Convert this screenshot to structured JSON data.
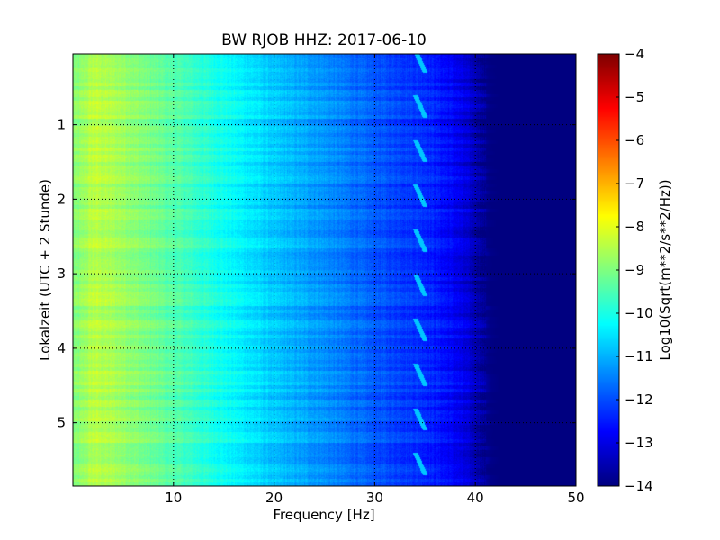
{
  "chart_data": {
    "type": "heatmap",
    "title": "BW RJOB HHZ: 2017-06-10",
    "xlabel": "Frequency [Hz]",
    "ylabel": "Lokalzeit (UTC + 2 Stunde)",
    "xlim": [
      0,
      50
    ],
    "ylim": [
      5.85,
      0.05
    ],
    "y_inverted": true,
    "xticks": [
      10,
      20,
      30,
      40,
      50
    ],
    "yticks": [
      1,
      2,
      3,
      4,
      5
    ],
    "grid": true,
    "colormap": "jet",
    "colorbar": {
      "label": "Log10(Sqrt(m**2/s**2/Hz))",
      "range": [
        -14,
        -4
      ],
      "ticks": [
        -4,
        -5,
        -6,
        -7,
        -8,
        -9,
        -10,
        -11,
        -12,
        -13,
        -14
      ]
    },
    "spectral_profile": {
      "frequency_hz": [
        0.5,
        2,
        5,
        10,
        15,
        20,
        25,
        30,
        35,
        38,
        40,
        41,
        42,
        50
      ],
      "log10_amplitude": [
        -8.9,
        -8.4,
        -8.7,
        -9.4,
        -10.1,
        -10.8,
        -11.3,
        -11.9,
        -12.3,
        -12.8,
        -13.4,
        -13.9,
        -14.0,
        -14.0
      ]
    },
    "tonal_feature": {
      "frequency_hz": [
        34,
        35
      ],
      "log10_amplitude": -10.8,
      "repeat_interval_hours": 0.6
    }
  }
}
